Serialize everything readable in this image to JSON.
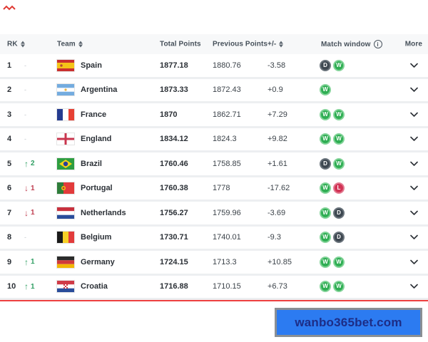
{
  "page": {
    "decoration": "red-scribble-icon"
  },
  "table": {
    "header": {
      "rk": "RK",
      "team": "Team",
      "total_points": "Total Points",
      "previous_points": "Previous Points",
      "plus_minus": "+/-",
      "match_window": "Match window",
      "more": "More",
      "sortable_columns": [
        "RK",
        "Team",
        "+/-"
      ],
      "icons": [
        "sort-icon",
        "info-icon"
      ]
    },
    "rows": [
      {
        "rank": "1",
        "change": "none",
        "change_value": "",
        "team": "Spain",
        "flag": "spain",
        "total_points": "1877.18",
        "previous_points": "1880.76",
        "plus_minus": "-3.58",
        "match_window": [
          "D",
          "W"
        ]
      },
      {
        "rank": "2",
        "change": "none",
        "change_value": "",
        "team": "Argentina",
        "flag": "argentina",
        "total_points": "1873.33",
        "previous_points": "1872.43",
        "plus_minus": "+0.9",
        "match_window": [
          "W"
        ]
      },
      {
        "rank": "3",
        "change": "none",
        "change_value": "",
        "team": "France",
        "flag": "france",
        "total_points": "1870",
        "previous_points": "1862.71",
        "plus_minus": "+7.29",
        "match_window": [
          "W",
          "W"
        ]
      },
      {
        "rank": "4",
        "change": "none",
        "change_value": "",
        "team": "England",
        "flag": "england",
        "total_points": "1834.12",
        "previous_points": "1824.3",
        "plus_minus": "+9.82",
        "match_window": [
          "W",
          "W"
        ]
      },
      {
        "rank": "5",
        "change": "up",
        "change_value": "2",
        "team": "Brazil",
        "flag": "brazil",
        "total_points": "1760.46",
        "previous_points": "1758.85",
        "plus_minus": "+1.61",
        "match_window": [
          "D",
          "W"
        ]
      },
      {
        "rank": "6",
        "change": "down",
        "change_value": "1",
        "team": "Portugal",
        "flag": "portugal",
        "total_points": "1760.38",
        "previous_points": "1778",
        "plus_minus": "-17.62",
        "match_window": [
          "W",
          "L"
        ]
      },
      {
        "rank": "7",
        "change": "down",
        "change_value": "1",
        "team": "Netherlands",
        "flag": "netherlands",
        "total_points": "1756.27",
        "previous_points": "1759.96",
        "plus_minus": "-3.69",
        "match_window": [
          "W",
          "D"
        ]
      },
      {
        "rank": "8",
        "change": "none",
        "change_value": "",
        "team": "Belgium",
        "flag": "belgium",
        "total_points": "1730.71",
        "previous_points": "1740.01",
        "plus_minus": "-9.3",
        "match_window": [
          "W",
          "D"
        ]
      },
      {
        "rank": "9",
        "change": "up",
        "change_value": "1",
        "team": "Germany",
        "flag": "germany",
        "total_points": "1724.15",
        "previous_points": "1713.3",
        "plus_minus": "+10.85",
        "match_window": [
          "W",
          "W"
        ]
      },
      {
        "rank": "10",
        "change": "up",
        "change_value": "1",
        "team": "Croatia",
        "flag": "croatia",
        "total_points": "1716.88",
        "previous_points": "1710.15",
        "plus_minus": "+6.73",
        "match_window": [
          "W",
          "W"
        ]
      }
    ]
  },
  "banner": {
    "text": "wanbo365bet.com"
  },
  "colors": {
    "header_background": "#f7f8f9",
    "row_separator": "#edeff1",
    "win_badge": "#2fae53",
    "draw_badge": "#3d4750",
    "loss_badge": "#d13355",
    "rank_up": "#2f9e62",
    "rank_down": "#bf3d4f",
    "red_divider": "#ee4040",
    "banner_background": "#2c7bf1",
    "banner_border": "#8a8f94",
    "banner_text": "#1d2d86"
  }
}
